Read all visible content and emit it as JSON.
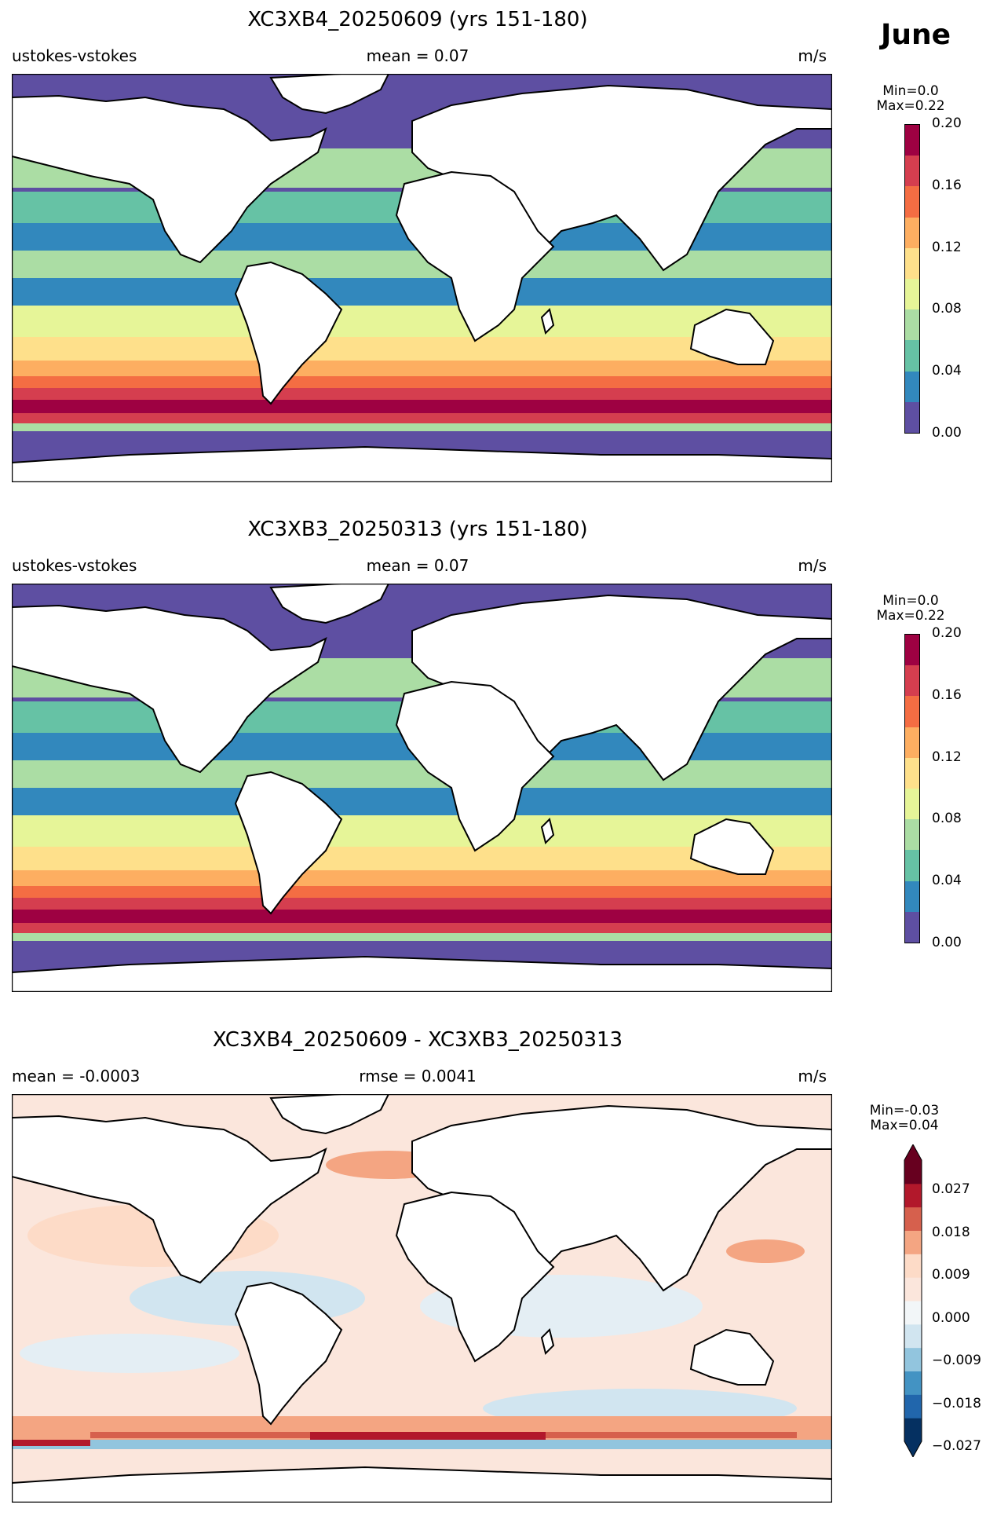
{
  "month": "June",
  "panels": [
    {
      "title": "XC3XB4_20250609 (yrs 151-180)",
      "left": "ustokes-vstokes",
      "center": "mean = 0.07",
      "right": "m/s",
      "colorbar": {
        "min_text": "Min=0.0",
        "max_text": "Max=0.22",
        "ticks": [
          "0.20",
          "0.16",
          "0.12",
          "0.08",
          "0.04",
          "0.00"
        ],
        "colors": [
          "#5e4fa2",
          "#3288bd",
          "#66c2a5",
          "#abdda4",
          "#e6f598",
          "#fee08b",
          "#fdae61",
          "#f46d43",
          "#d53e4f",
          "#9e0142"
        ]
      }
    },
    {
      "title": "XC3XB3_20250313 (yrs 151-180)",
      "left": "ustokes-vstokes",
      "center": "mean = 0.07",
      "right": "m/s",
      "colorbar": {
        "min_text": "Min=0.0",
        "max_text": "Max=0.22",
        "ticks": [
          "0.20",
          "0.16",
          "0.12",
          "0.08",
          "0.04",
          "0.00"
        ],
        "colors": [
          "#5e4fa2",
          "#3288bd",
          "#66c2a5",
          "#abdda4",
          "#e6f598",
          "#fee08b",
          "#fdae61",
          "#f46d43",
          "#d53e4f",
          "#9e0142"
        ]
      }
    },
    {
      "title": "XC3XB4_20250609 - XC3XB3_20250313",
      "left": "mean = -0.0003",
      "center": "rmse = 0.0041",
      "right": "m/s",
      "colorbar": {
        "min_text": "Min=-0.03",
        "max_text": "Max=0.04",
        "ticks": [
          "0.027",
          "0.018",
          "0.009",
          "0.000",
          "−0.009",
          "−0.018",
          "−0.027"
        ],
        "colors": [
          "#053061",
          "#2166ac",
          "#4393c3",
          "#92c5de",
          "#d1e5f0",
          "#f2f6f8",
          "#fbe6dc",
          "#fddbc7",
          "#f4a582",
          "#d6604d",
          "#b2182b",
          "#67001f"
        ]
      }
    }
  ]
}
